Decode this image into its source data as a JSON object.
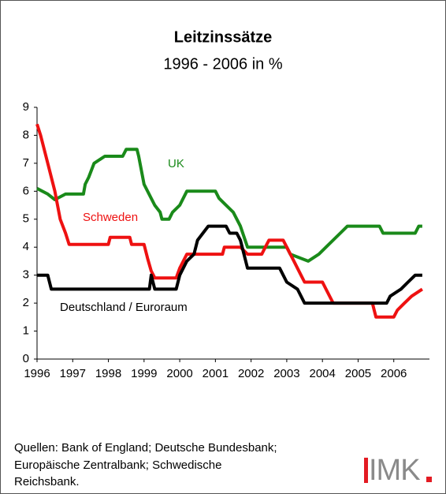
{
  "chart_data": {
    "type": "line",
    "title": "Leitzinssätze",
    "subtitle": "1996 - 2006 in %",
    "xlim": [
      1996,
      2007
    ],
    "xticks": [
      1996,
      1997,
      1998,
      1999,
      2000,
      2001,
      2002,
      2003,
      2004,
      2005,
      2006
    ],
    "ylim": [
      0,
      9
    ],
    "yticks": [
      0,
      1,
      2,
      3,
      4,
      5,
      6,
      7,
      8,
      9
    ],
    "grid": false,
    "series": [
      {
        "name": "UK",
        "color": "#1a8a1a",
        "x": [
          1996.0,
          1996.3,
          1996.5,
          1996.8,
          1997.3,
          1997.35,
          1997.45,
          1997.6,
          1997.9,
          1998.4,
          1998.5,
          1998.8,
          1998.85,
          1999.0,
          1999.3,
          1999.45,
          1999.5,
          1999.7,
          1999.8,
          2000.0,
          2000.1,
          2000.2,
          2001.0,
          2001.1,
          2001.3,
          2001.5,
          2001.7,
          2001.9,
          2003.0,
          2003.1,
          2003.6,
          2003.9,
          2004.1,
          2004.5,
          2004.7,
          2005.6,
          2005.7,
          2006.6,
          2006.7,
          2006.8
        ],
        "values": [
          6.1,
          5.9,
          5.7,
          5.9,
          5.9,
          6.25,
          6.5,
          7.0,
          7.25,
          7.25,
          7.5,
          7.5,
          7.25,
          6.25,
          5.5,
          5.25,
          5.0,
          5.0,
          5.25,
          5.5,
          5.75,
          6.0,
          6.0,
          5.75,
          5.5,
          5.25,
          4.75,
          4.0,
          4.0,
          3.75,
          3.5,
          3.75,
          4.0,
          4.5,
          4.75,
          4.75,
          4.5,
          4.5,
          4.75,
          4.75
        ]
      },
      {
        "name": "Schweden",
        "color": "#ee1111",
        "x": [
          1996.0,
          1996.1,
          1996.3,
          1996.5,
          1996.65,
          1996.8,
          1996.9,
          1998.0,
          1998.05,
          1998.6,
          1998.65,
          1999.0,
          1999.1,
          1999.2,
          1999.3,
          1999.9,
          2000.0,
          2000.2,
          2001.2,
          2001.25,
          2001.7,
          2001.9,
          2002.3,
          2002.4,
          2002.5,
          2002.9,
          2003.0,
          2003.2,
          2003.4,
          2003.5,
          2004.0,
          2004.1,
          2004.3,
          2005.4,
          2005.5,
          2006.0,
          2006.1,
          2006.3,
          2006.5,
          2006.8
        ],
        "values": [
          8.4,
          8.0,
          7.0,
          6.0,
          5.0,
          4.5,
          4.1,
          4.1,
          4.35,
          4.35,
          4.1,
          4.1,
          3.6,
          3.15,
          2.9,
          2.9,
          3.25,
          3.75,
          3.75,
          4.0,
          4.0,
          3.75,
          3.75,
          4.0,
          4.25,
          4.25,
          4.0,
          3.5,
          3.0,
          2.75,
          2.75,
          2.5,
          2.0,
          2.0,
          1.5,
          1.5,
          1.75,
          2.0,
          2.25,
          2.5
        ]
      },
      {
        "name": "Deutschland / Euroraum",
        "color": "#000000",
        "x": [
          1996.0,
          1996.3,
          1996.4,
          1999.15,
          1999.2,
          1999.3,
          1999.9,
          2000.0,
          2000.2,
          2000.4,
          2000.5,
          2000.8,
          2001.3,
          2001.4,
          2001.6,
          2001.7,
          2001.8,
          2001.9,
          2002.8,
          2003.0,
          2003.3,
          2003.5,
          2005.8,
          2005.9,
          2006.2,
          2006.4,
          2006.6,
          2006.8
        ],
        "values": [
          3.0,
          3.0,
          2.5,
          2.5,
          3.0,
          2.5,
          2.5,
          3.0,
          3.5,
          3.75,
          4.25,
          4.75,
          4.75,
          4.5,
          4.5,
          4.25,
          3.75,
          3.25,
          3.25,
          2.75,
          2.5,
          2.0,
          2.0,
          2.25,
          2.5,
          2.75,
          3.0,
          3.0
        ]
      }
    ],
    "source": [
      "Quellen: Bank of England; Deutsche Bundesbank;",
      "Europäische Zentralbank; Schwedische",
      "Reichsbank."
    ],
    "logo": "IMK"
  }
}
